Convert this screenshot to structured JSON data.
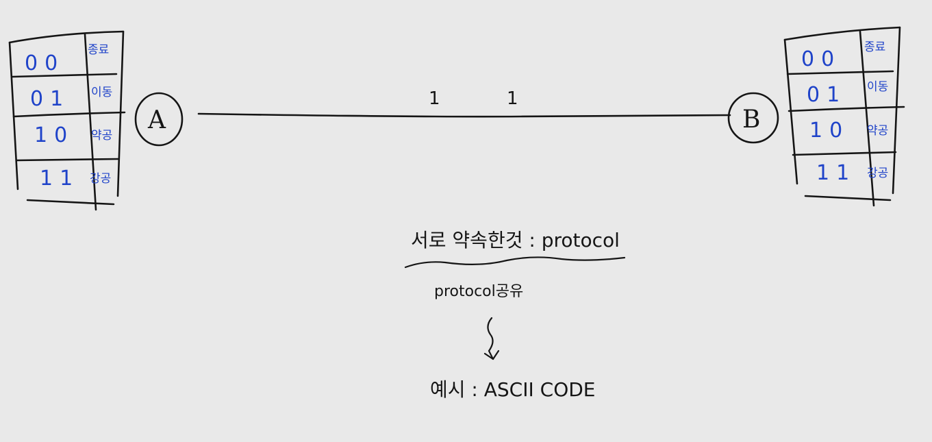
{
  "colors": {
    "background": "#e9e9e9",
    "ink": "#151515",
    "blue_ink": "#1f43c9"
  },
  "nodes": {
    "left": "A",
    "right": "B"
  },
  "tables": {
    "left": {
      "rows": [
        {
          "bits": "00",
          "meaning": "종료"
        },
        {
          "bits": "01",
          "meaning": "이동"
        },
        {
          "bits": "10",
          "meaning": "약공"
        },
        {
          "bits": "11",
          "meaning": "강공"
        }
      ]
    },
    "right": {
      "rows": [
        {
          "bits": "00",
          "meaning": "종료"
        },
        {
          "bits": "01",
          "meaning": "이동"
        },
        {
          "bits": "10",
          "meaning": "약공"
        },
        {
          "bits": "11",
          "meaning": "강공"
        }
      ]
    }
  },
  "line_signal": {
    "bit1": "1",
    "bit2": "1"
  },
  "notes": {
    "heading": "서로 약속한것 : protocol",
    "sub": "protocol공유",
    "example": "예시 : ASCII CODE"
  }
}
